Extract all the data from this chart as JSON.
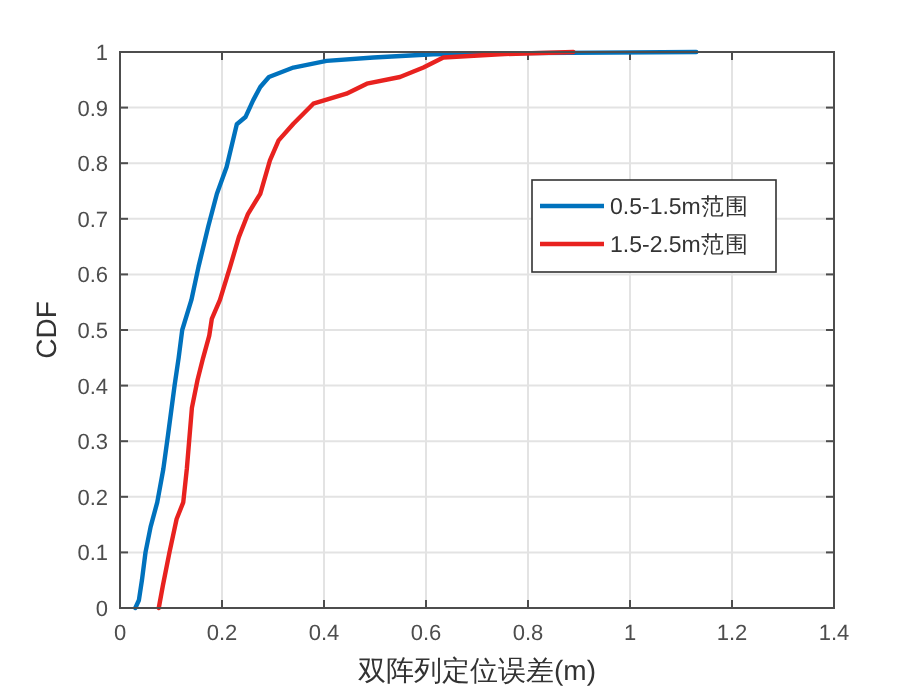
{
  "chart_data": {
    "type": "line",
    "xlabel": "双阵列定位误差(m)",
    "ylabel": "CDF",
    "xlim": [
      0,
      1.4
    ],
    "xticks": [
      0,
      0.2,
      0.4,
      0.6,
      0.8,
      1,
      1.2,
      1.4
    ],
    "ylim": [
      0,
      1
    ],
    "yticks": [
      0,
      0.1,
      0.2,
      0.3,
      0.4,
      0.5,
      0.6,
      0.7,
      0.8,
      0.9,
      1
    ],
    "grid": true,
    "legend": "right",
    "marker": "none",
    "line_style": "solid",
    "series": [
      {
        "name": "0.5-1.5m范围",
        "color": "#0072bd",
        "x": [
          0.03,
          0.037,
          0.043,
          0.05,
          0.06,
          0.073,
          0.085,
          0.094,
          0.107,
          0.115,
          0.122,
          0.14,
          0.154,
          0.173,
          0.19,
          0.209,
          0.229,
          0.246,
          0.261,
          0.275,
          0.292,
          0.34,
          0.405,
          0.497,
          0.614,
          0.8,
          1.13
        ],
        "values": [
          0,
          0.014,
          0.05,
          0.1,
          0.146,
          0.19,
          0.25,
          0.31,
          0.4,
          0.45,
          0.5,
          0.554,
          0.614,
          0.686,
          0.745,
          0.793,
          0.87,
          0.883,
          0.913,
          0.937,
          0.955,
          0.972,
          0.984,
          0.99,
          0.996,
          0.998,
          1
        ]
      },
      {
        "name": "1.5-2.5m范围",
        "color": "#e8221f",
        "x": [
          0.076,
          0.084,
          0.097,
          0.111,
          0.124,
          0.131,
          0.141,
          0.152,
          0.163,
          0.175,
          0.18,
          0.196,
          0.216,
          0.233,
          0.251,
          0.275,
          0.294,
          0.311,
          0.34,
          0.379,
          0.444,
          0.484,
          0.549,
          0.595,
          0.634,
          0.745,
          0.889
        ],
        "values": [
          0,
          0.04,
          0.1,
          0.16,
          0.19,
          0.25,
          0.36,
          0.41,
          0.45,
          0.49,
          0.52,
          0.554,
          0.614,
          0.667,
          0.709,
          0.745,
          0.805,
          0.841,
          0.871,
          0.907,
          0.925,
          0.943,
          0.955,
          0.972,
          0.99,
          0.996,
          1
        ]
      }
    ]
  }
}
